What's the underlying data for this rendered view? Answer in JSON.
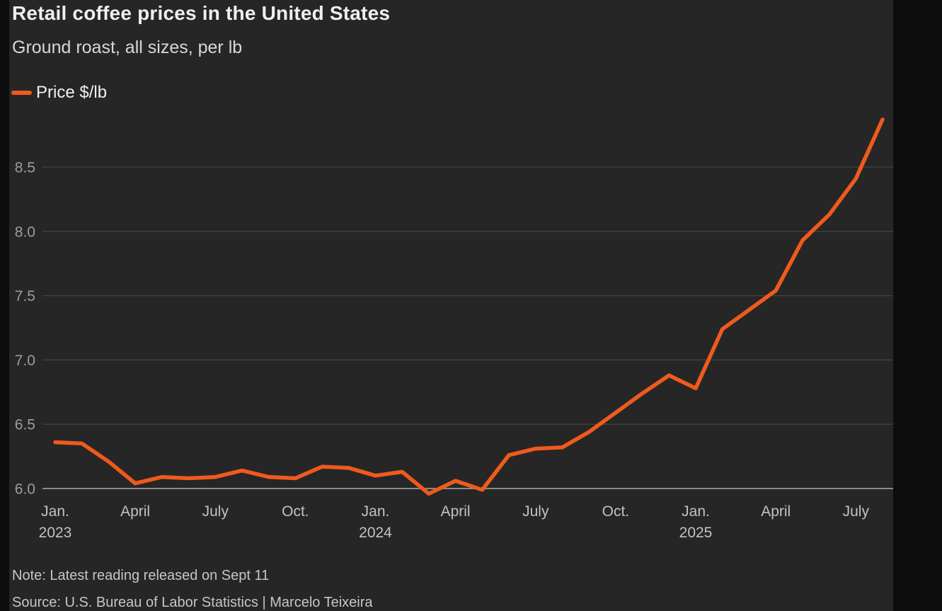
{
  "header": {
    "title": "Retail coffee prices in the United States",
    "subtitle": "Ground roast, all sizes, per lb"
  },
  "legend": {
    "label": "Price $/lb"
  },
  "footer": {
    "note": "Note: Latest reading released on Sept 11",
    "source": "Source: U.S. Bureau of Labor Statistics | Marcelo Teixeira"
  },
  "colors": {
    "page_bg": "#0d0d0d",
    "panel_bg": "#262626",
    "accent": "#ef5a1d",
    "grid": "#434343",
    "baseline": "#8a8a8a",
    "title_text": "#efefef",
    "subtitle_text": "#d8d8d8",
    "legend_text": "#f0f0f0",
    "y_tick_text": "#9c9c9c",
    "x_tick_text": "#c2c2c2",
    "footer_text": "#c6c6c6"
  },
  "chart_data": {
    "type": "line",
    "title": "Retail coffee prices in the United States",
    "subtitle": "Ground roast, all sizes, per lb",
    "xlabel": "",
    "ylabel": "Price $/lb",
    "grid": "horizontal",
    "legend_position": "top-left",
    "ylim": [
      5.9,
      9.0
    ],
    "y_ticks": [
      6.0,
      6.5,
      7.0,
      7.5,
      8.0,
      8.5
    ],
    "x": [
      "Jan 2023",
      "Feb 2023",
      "Mar 2023",
      "Apr 2023",
      "May 2023",
      "Jun 2023",
      "Jul 2023",
      "Aug 2023",
      "Sep 2023",
      "Oct 2023",
      "Nov 2023",
      "Dec 2023",
      "Jan 2024",
      "Feb 2024",
      "Mar 2024",
      "Apr 2024",
      "May 2024",
      "Jun 2024",
      "Jul 2024",
      "Aug 2024",
      "Sep 2024",
      "Oct 2024",
      "Nov 2024",
      "Dec 2024",
      "Jan 2025",
      "Feb 2025",
      "Mar 2025",
      "Apr 2025",
      "May 2025",
      "Jun 2025",
      "Jul 2025",
      "Aug 2025"
    ],
    "x_tick_labels": [
      {
        "index": 0,
        "label": "Jan.",
        "year": "2023"
      },
      {
        "index": 3,
        "label": "April",
        "year": ""
      },
      {
        "index": 6,
        "label": "July",
        "year": ""
      },
      {
        "index": 9,
        "label": "Oct.",
        "year": ""
      },
      {
        "index": 12,
        "label": "Jan.",
        "year": "2024"
      },
      {
        "index": 15,
        "label": "April",
        "year": ""
      },
      {
        "index": 18,
        "label": "July",
        "year": ""
      },
      {
        "index": 21,
        "label": "Oct.",
        "year": ""
      },
      {
        "index": 24,
        "label": "Jan.",
        "year": "2025"
      },
      {
        "index": 27,
        "label": "April",
        "year": ""
      },
      {
        "index": 30,
        "label": "July",
        "year": ""
      }
    ],
    "series": [
      {
        "name": "Price $/lb",
        "color": "#ef5a1d",
        "values": [
          6.36,
          6.35,
          6.21,
          6.04,
          6.09,
          6.08,
          6.09,
          6.14,
          6.09,
          6.08,
          6.17,
          6.16,
          6.1,
          6.13,
          5.96,
          6.06,
          5.99,
          6.26,
          6.31,
          6.32,
          6.44,
          6.59,
          6.74,
          6.88,
          6.78,
          7.24,
          7.39,
          7.54,
          7.93,
          8.13,
          8.41,
          8.87
        ]
      }
    ]
  }
}
